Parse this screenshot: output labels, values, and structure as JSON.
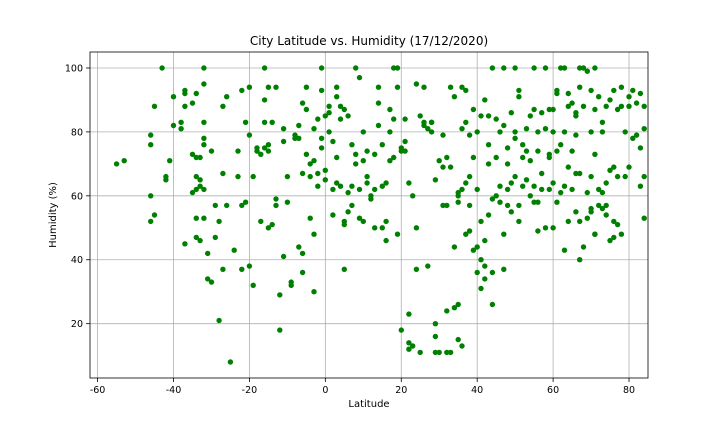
{
  "chart_data": {
    "type": "scatter",
    "title": "City Latitude vs. Humidity (17/12/2020)",
    "xlabel": "Latitude",
    "ylabel": "Humidity (%)",
    "xlim": [
      -62,
      85
    ],
    "ylim": [
      3,
      105
    ],
    "xticks": [
      "-60",
      "-40",
      "-20",
      "0",
      "20",
      "40",
      "60",
      "80"
    ],
    "yticks": [
      "20",
      "40",
      "60",
      "80",
      "100"
    ],
    "grid": true,
    "marker_color": "#008000",
    "points": [
      [
        -55,
        70
      ],
      [
        -53,
        71
      ],
      [
        -46,
        79
      ],
      [
        -46,
        76
      ],
      [
        -46,
        60
      ],
      [
        -46,
        52
      ],
      [
        -45,
        54
      ],
      [
        -45,
        88
      ],
      [
        -43,
        100
      ],
      [
        -42,
        66
      ],
      [
        -42,
        65
      ],
      [
        -41,
        71
      ],
      [
        -40,
        82
      ],
      [
        -40,
        91
      ],
      [
        -38,
        83
      ],
      [
        -38,
        81
      ],
      [
        -37,
        93
      ],
      [
        -37,
        92
      ],
      [
        -37,
        88
      ],
      [
        -37,
        45
      ],
      [
        -35,
        61
      ],
      [
        -35,
        73
      ],
      [
        -35,
        89
      ],
      [
        -34,
        92
      ],
      [
        -34,
        72
      ],
      [
        -34,
        66
      ],
      [
        -34,
        62
      ],
      [
        -34,
        53
      ],
      [
        -34,
        47
      ],
      [
        -33,
        46
      ],
      [
        -33,
        63
      ],
      [
        -33,
        65
      ],
      [
        -33,
        72
      ],
      [
        -32,
        76
      ],
      [
        -32,
        78
      ],
      [
        -32,
        83
      ],
      [
        -32,
        95
      ],
      [
        -32,
        100
      ],
      [
        -32,
        62
      ],
      [
        -32,
        53
      ],
      [
        -31,
        42
      ],
      [
        -31,
        34
      ],
      [
        -30,
        33
      ],
      [
        -30,
        74
      ],
      [
        -29,
        57
      ],
      [
        -29,
        47
      ],
      [
        -28,
        52
      ],
      [
        -28,
        21
      ],
      [
        -27,
        37
      ],
      [
        -27,
        67
      ],
      [
        -27,
        88
      ],
      [
        -26,
        91
      ],
      [
        -26,
        57
      ],
      [
        -25,
        8
      ],
      [
        -24,
        43
      ],
      [
        -23,
        74
      ],
      [
        -23,
        66
      ],
      [
        -22,
        93
      ],
      [
        -22,
        57
      ],
      [
        -22,
        37
      ],
      [
        -21,
        58
      ],
      [
        -21,
        83
      ],
      [
        -20,
        94
      ],
      [
        -20,
        79
      ],
      [
        -20,
        38
      ],
      [
        -19,
        32
      ],
      [
        -19,
        66
      ],
      [
        -18,
        75
      ],
      [
        -18,
        74
      ],
      [
        -17,
        73
      ],
      [
        -17,
        52
      ],
      [
        -16,
        90
      ],
      [
        -16,
        83
      ],
      [
        -16,
        75
      ],
      [
        -16,
        100
      ],
      [
        -15,
        76
      ],
      [
        -15,
        74
      ],
      [
        -15,
        94
      ],
      [
        -15,
        50
      ],
      [
        -14,
        51
      ],
      [
        -14,
        83
      ],
      [
        -13,
        59
      ],
      [
        -13,
        57
      ],
      [
        -13,
        94
      ],
      [
        -12,
        29
      ],
      [
        -12,
        18
      ],
      [
        -11,
        41
      ],
      [
        -11,
        77
      ],
      [
        -11,
        81
      ],
      [
        -10,
        66
      ],
      [
        -10,
        58
      ],
      [
        -9,
        33
      ],
      [
        -9,
        32
      ],
      [
        -8,
        79
      ],
      [
        -8,
        78
      ],
      [
        -7,
        82
      ],
      [
        -7,
        78
      ],
      [
        -7,
        44
      ],
      [
        -6,
        42
      ],
      [
        -6,
        36
      ],
      [
        -6,
        89
      ],
      [
        -6,
        67
      ],
      [
        -5,
        73
      ],
      [
        -5,
        87
      ],
      [
        -5,
        94
      ],
      [
        -4,
        70
      ],
      [
        -4,
        66
      ],
      [
        -4,
        53
      ],
      [
        -3,
        48
      ],
      [
        -3,
        30
      ],
      [
        -3,
        71
      ],
      [
        -3,
        81
      ],
      [
        -2,
        63
      ],
      [
        -2,
        84
      ],
      [
        -2,
        67
      ],
      [
        -1,
        78
      ],
      [
        -1,
        93
      ],
      [
        -1,
        75
      ],
      [
        -1,
        100
      ],
      [
        0,
        85
      ],
      [
        0,
        68
      ],
      [
        0,
        65
      ],
      [
        1,
        88
      ],
      [
        1,
        86
      ],
      [
        1,
        80
      ],
      [
        2,
        54
      ],
      [
        2,
        62
      ],
      [
        2,
        77
      ],
      [
        3,
        72
      ],
      [
        3,
        94
      ],
      [
        3,
        91
      ],
      [
        3,
        64
      ],
      [
        4,
        63
      ],
      [
        4,
        88
      ],
      [
        4,
        84
      ],
      [
        5,
        52
      ],
      [
        5,
        51
      ],
      [
        5,
        37
      ],
      [
        5,
        87
      ],
      [
        6,
        85
      ],
      [
        6,
        55
      ],
      [
        6,
        61
      ],
      [
        7,
        57
      ],
      [
        7,
        76
      ],
      [
        7,
        63
      ],
      [
        8,
        73
      ],
      [
        8,
        70
      ],
      [
        8,
        100
      ],
      [
        9,
        97
      ],
      [
        9,
        62
      ],
      [
        9,
        53
      ],
      [
        10,
        71
      ],
      [
        10,
        52
      ],
      [
        10,
        80
      ],
      [
        11,
        64
      ],
      [
        11,
        66
      ],
      [
        11,
        74
      ],
      [
        12,
        59
      ],
      [
        12,
        60
      ],
      [
        13,
        73
      ],
      [
        13,
        62
      ],
      [
        13,
        50
      ],
      [
        14,
        94
      ],
      [
        14,
        89
      ],
      [
        14,
        82
      ],
      [
        15,
        50
      ],
      [
        15,
        63
      ],
      [
        15,
        76
      ],
      [
        16,
        46
      ],
      [
        16,
        64
      ],
      [
        16,
        52
      ],
      [
        17,
        71
      ],
      [
        17,
        80
      ],
      [
        17,
        87
      ],
      [
        18,
        100
      ],
      [
        18,
        72
      ],
      [
        18,
        84
      ],
      [
        19,
        94
      ],
      [
        19,
        100
      ],
      [
        19,
        48
      ],
      [
        20,
        75
      ],
      [
        20,
        74
      ],
      [
        20,
        18
      ],
      [
        21,
        77
      ],
      [
        21,
        74
      ],
      [
        21,
        84
      ],
      [
        22,
        64
      ],
      [
        22,
        12
      ],
      [
        22,
        23
      ],
      [
        22,
        14
      ],
      [
        23,
        13
      ],
      [
        23,
        60
      ],
      [
        24,
        37
      ],
      [
        24,
        95
      ],
      [
        24,
        50
      ],
      [
        25,
        11
      ],
      [
        25,
        85
      ],
      [
        26,
        94
      ],
      [
        26,
        83
      ],
      [
        26,
        82
      ],
      [
        27,
        81
      ],
      [
        27,
        38
      ],
      [
        28,
        80
      ],
      [
        28,
        83
      ],
      [
        28,
        83
      ],
      [
        29,
        11
      ],
      [
        29,
        65
      ],
      [
        29,
        20
      ],
      [
        29,
        16
      ],
      [
        30,
        71
      ],
      [
        30,
        11
      ],
      [
        31,
        79
      ],
      [
        31,
        57
      ],
      [
        31,
        69
      ],
      [
        32,
        11
      ],
      [
        32,
        72
      ],
      [
        32,
        57
      ],
      [
        32,
        24
      ],
      [
        33,
        94
      ],
      [
        33,
        69
      ],
      [
        33,
        11
      ],
      [
        34,
        91
      ],
      [
        34,
        44
      ],
      [
        34,
        25
      ],
      [
        35,
        26
      ],
      [
        35,
        58
      ],
      [
        35,
        60
      ],
      [
        35,
        15
      ],
      [
        35,
        61
      ],
      [
        36,
        81
      ],
      [
        36,
        62
      ],
      [
        36,
        13
      ],
      [
        36,
        94
      ],
      [
        37,
        93
      ],
      [
        37,
        64
      ],
      [
        37,
        48
      ],
      [
        37,
        83
      ],
      [
        38,
        79
      ],
      [
        38,
        66
      ],
      [
        38,
        57
      ],
      [
        38,
        49
      ],
      [
        39,
        87
      ],
      [
        39,
        43
      ],
      [
        39,
        72
      ],
      [
        40,
        44
      ],
      [
        40,
        36
      ],
      [
        40,
        62
      ],
      [
        40,
        80
      ],
      [
        41,
        85
      ],
      [
        41,
        52
      ],
      [
        41,
        31
      ],
      [
        41,
        40
      ],
      [
        42,
        90
      ],
      [
        42,
        38
      ],
      [
        42,
        34
      ],
      [
        42,
        46
      ],
      [
        43,
        85
      ],
      [
        43,
        76
      ],
      [
        43,
        70
      ],
      [
        43,
        54
      ],
      [
        44,
        36
      ],
      [
        44,
        100
      ],
      [
        44,
        26
      ],
      [
        44,
        59
      ],
      [
        45,
        72
      ],
      [
        45,
        84
      ],
      [
        45,
        60
      ],
      [
        46,
        80
      ],
      [
        46,
        63
      ],
      [
        46,
        58
      ],
      [
        47,
        100
      ],
      [
        47,
        82
      ],
      [
        47,
        48
      ],
      [
        47,
        37
      ],
      [
        48,
        62
      ],
      [
        48,
        75
      ],
      [
        48,
        57
      ],
      [
        48,
        70
      ],
      [
        49,
        86
      ],
      [
        49,
        55
      ],
      [
        49,
        64
      ],
      [
        50,
        100
      ],
      [
        50,
        66
      ],
      [
        50,
        78
      ],
      [
        50,
        80
      ],
      [
        51,
        91
      ],
      [
        51,
        93
      ],
      [
        51,
        57
      ],
      [
        51,
        52
      ],
      [
        52,
        72
      ],
      [
        52,
        76
      ],
      [
        52,
        63
      ],
      [
        53,
        74
      ],
      [
        53,
        81
      ],
      [
        53,
        65
      ],
      [
        54,
        71
      ],
      [
        54,
        60
      ],
      [
        54,
        85
      ],
      [
        55,
        100
      ],
      [
        55,
        87
      ],
      [
        55,
        63
      ],
      [
        55,
        58
      ],
      [
        56,
        80
      ],
      [
        56,
        74
      ],
      [
        56,
        49
      ],
      [
        57,
        86
      ],
      [
        57,
        62
      ],
      [
        57,
        67
      ],
      [
        58,
        50
      ],
      [
        58,
        81
      ],
      [
        58,
        100
      ],
      [
        59,
        87
      ],
      [
        59,
        72
      ],
      [
        59,
        62
      ],
      [
        60,
        64
      ],
      [
        60,
        87
      ],
      [
        60,
        80
      ],
      [
        61,
        92
      ],
      [
        61,
        93
      ],
      [
        61,
        74
      ],
      [
        62,
        100
      ],
      [
        62,
        76
      ],
      [
        63,
        80
      ],
      [
        63,
        100
      ],
      [
        63,
        63
      ],
      [
        64,
        92
      ],
      [
        64,
        52
      ],
      [
        64,
        88
      ],
      [
        65,
        89
      ],
      [
        65,
        62
      ],
      [
        65,
        74
      ],
      [
        66,
        85
      ],
      [
        66,
        79
      ],
      [
        66,
        86
      ],
      [
        67,
        100
      ],
      [
        67,
        94
      ],
      [
        68,
        100
      ],
      [
        68,
        88
      ],
      [
        69,
        99
      ],
      [
        69,
        53
      ],
      [
        70,
        66
      ],
      [
        70,
        93
      ],
      [
        70,
        80
      ],
      [
        71,
        100
      ],
      [
        71,
        87
      ],
      [
        71,
        73
      ],
      [
        72,
        91
      ],
      [
        72,
        62
      ],
      [
        73,
        83
      ],
      [
        73,
        80
      ],
      [
        74,
        88
      ],
      [
        74,
        64
      ],
      [
        75,
        90
      ],
      [
        75,
        68
      ],
      [
        76,
        69
      ],
      [
        76,
        93
      ],
      [
        77,
        87
      ],
      [
        77,
        66
      ],
      [
        78,
        88
      ],
      [
        78,
        94
      ],
      [
        79,
        66
      ],
      [
        79,
        80
      ],
      [
        80,
        69
      ],
      [
        80,
        91
      ],
      [
        80,
        88
      ],
      [
        81,
        93
      ],
      [
        81,
        78
      ],
      [
        82,
        79
      ],
      [
        82,
        89
      ],
      [
        83,
        92
      ],
      [
        83,
        75
      ],
      [
        83,
        63
      ],
      [
        84,
        88
      ],
      [
        84,
        81
      ],
      [
        84,
        53
      ],
      [
        84,
        66
      ],
      [
        60,
        50
      ],
      [
        63,
        43
      ],
      [
        66,
        55
      ],
      [
        67,
        40
      ],
      [
        68,
        44
      ],
      [
        70,
        56
      ],
      [
        71,
        48
      ],
      [
        73,
        61
      ],
      [
        74,
        57
      ],
      [
        76,
        47
      ],
      [
        56,
        58
      ],
      [
        59,
        73
      ],
      [
        61,
        58
      ],
      [
        62,
        61
      ],
      [
        64,
        69
      ],
      [
        66,
        67
      ],
      [
        67,
        52
      ],
      [
        67,
        67
      ],
      [
        69,
        61
      ],
      [
        70,
        55
      ],
      [
        71,
        48
      ],
      [
        72,
        57
      ],
      [
        73,
        56
      ],
      [
        74,
        54
      ],
      [
        75,
        46
      ],
      [
        76,
        52
      ],
      [
        77,
        51
      ],
      [
        78,
        48
      ]
    ]
  }
}
